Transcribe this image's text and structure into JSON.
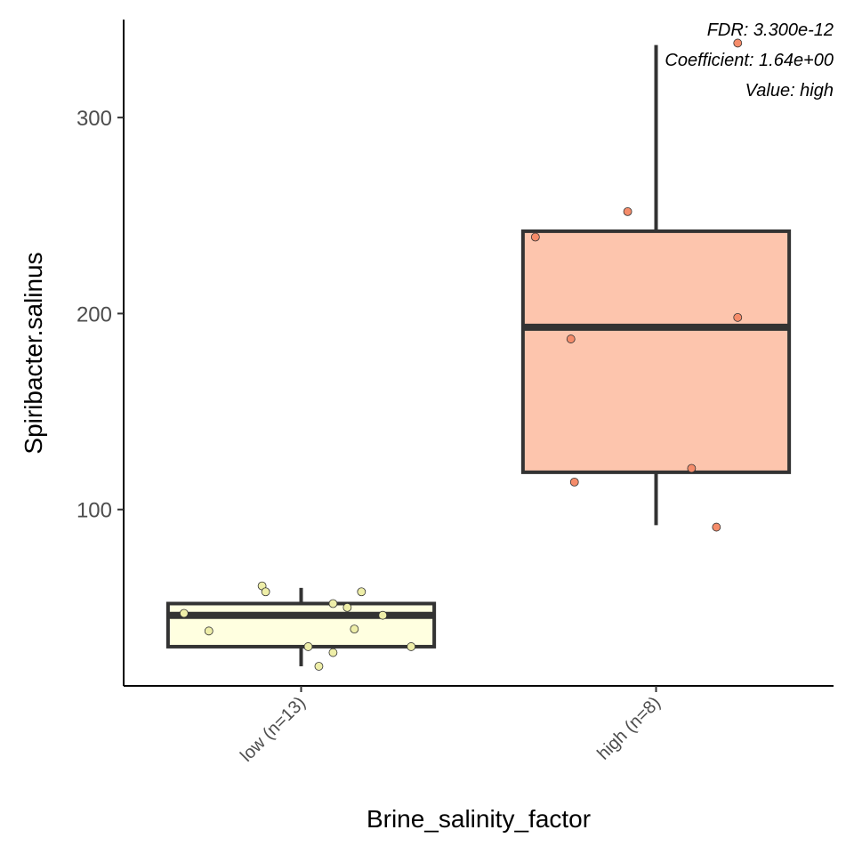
{
  "chart_data": {
    "type": "box",
    "xlabel": "Brine_salinity_factor",
    "ylabel": "Spiribacter.salinus",
    "ylim": [
      10,
      350
    ],
    "yticks": [
      100,
      200,
      300
    ],
    "grid": false,
    "legend": "none",
    "annotations": [
      "FDR: 3.300e-12",
      "Coefficient: 1.64e+00",
      "Value: high"
    ],
    "categories": [
      "low (n=13)",
      "high (n=8)"
    ],
    "boxes": [
      {
        "category": "low (n=13)",
        "fill": "#FFFFE0",
        "point_color": "#EEEEA8",
        "whisker_low": 20,
        "q1": 30,
        "median": 46,
        "q3": 52,
        "whisker_high": 60,
        "points": [
          {
            "dx": -0.33,
            "y": 47
          },
          {
            "dx": -0.26,
            "y": 38
          },
          {
            "dx": -0.11,
            "y": 61
          },
          {
            "dx": -0.1,
            "y": 58
          },
          {
            "dx": 0.02,
            "y": 30
          },
          {
            "dx": 0.05,
            "y": 20
          },
          {
            "dx": 0.09,
            "y": 27
          },
          {
            "dx": 0.09,
            "y": 52
          },
          {
            "dx": 0.13,
            "y": 50
          },
          {
            "dx": 0.15,
            "y": 39
          },
          {
            "dx": 0.17,
            "y": 58
          },
          {
            "dx": 0.23,
            "y": 46
          },
          {
            "dx": 0.31,
            "y": 30
          }
        ]
      },
      {
        "category": "high (n=8)",
        "fill": "#FDC5AD",
        "point_color": "#F58C6A",
        "whisker_low": 92,
        "q1": 119,
        "median": 193,
        "q3": 242,
        "whisker_high": 337,
        "points": [
          {
            "dx": -0.34,
            "y": 239
          },
          {
            "dx": -0.24,
            "y": 187
          },
          {
            "dx": -0.23,
            "y": 114
          },
          {
            "dx": -0.08,
            "y": 252
          },
          {
            "dx": 0.1,
            "y": 121
          },
          {
            "dx": 0.17,
            "y": 91
          },
          {
            "dx": 0.23,
            "y": 198
          },
          {
            "dx": 0.23,
            "y": 338
          }
        ]
      }
    ]
  }
}
